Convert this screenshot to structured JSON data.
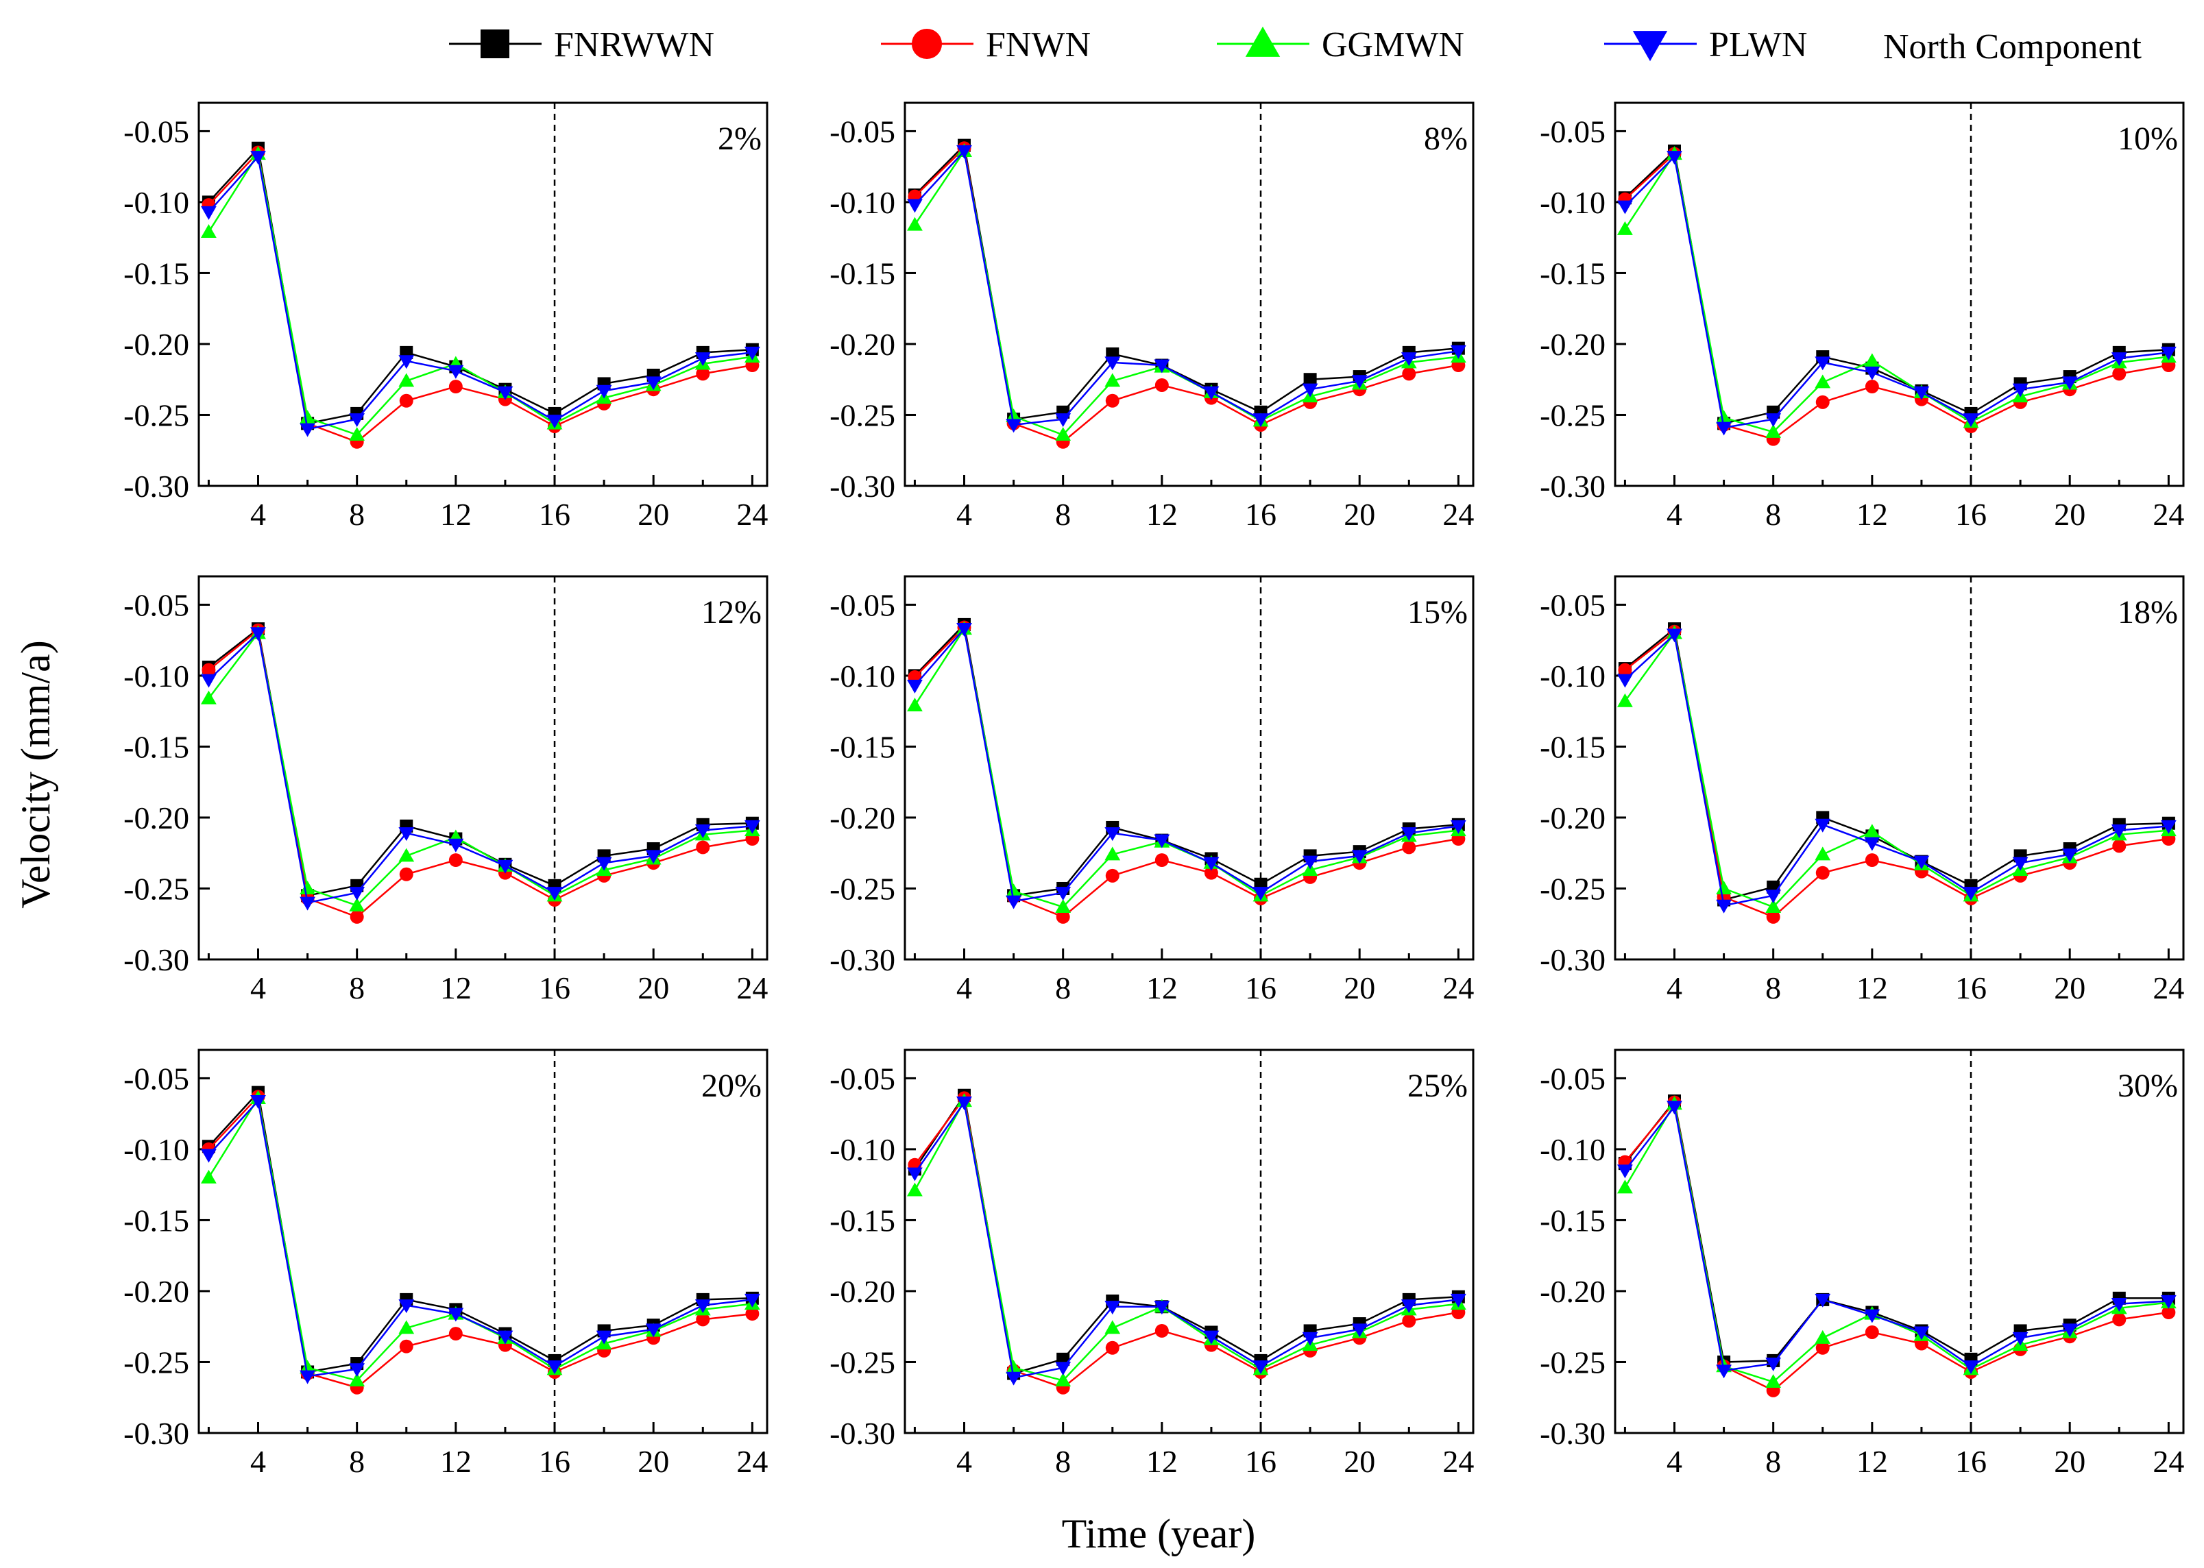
{
  "legend": {
    "entries": [
      {
        "label": "FNRWWN",
        "color": "#000000",
        "marker": "square"
      },
      {
        "label": "FNWN",
        "color": "#ff0000",
        "marker": "circle"
      },
      {
        "label": "GGMWN",
        "color": "#00ff00",
        "marker": "triangle-up"
      },
      {
        "label": "PLWN",
        "color": "#0000ff",
        "marker": "triangle-down"
      }
    ],
    "component_label": "North Component"
  },
  "axes": {
    "xlabel": "Time  (year)",
    "ylabel": "Velocity (mm/a)"
  },
  "chart_data": {
    "type": "line",
    "layout": "3x3 small multiples",
    "x": [
      2,
      4,
      6,
      8,
      10,
      12,
      14,
      16,
      18,
      20,
      22,
      24
    ],
    "xticks": [
      4,
      8,
      12,
      16,
      20,
      24
    ],
    "xlim": [
      1.6,
      24.6
    ],
    "ylim": [
      -0.3,
      -0.03
    ],
    "yticks": [
      -0.05,
      -0.1,
      -0.15,
      -0.2,
      -0.25,
      -0.3
    ],
    "ytick_labels": [
      "-0.05",
      "-0.10",
      "-0.15",
      "-0.20",
      "-0.25",
      "-0.30"
    ],
    "reference_line_x": 16,
    "series_names": [
      "FNRWWN",
      "FNWN",
      "GGMWN",
      "PLWN"
    ],
    "panels": [
      {
        "label": "2%",
        "series": [
          [
            -0.1,
            -0.062,
            -0.256,
            -0.249,
            -0.206,
            -0.216,
            -0.232,
            -0.249,
            -0.228,
            -0.222,
            -0.206,
            -0.204
          ],
          [
            -0.102,
            -0.065,
            -0.256,
            -0.269,
            -0.24,
            -0.23,
            -0.239,
            -0.258,
            -0.242,
            -0.232,
            -0.221,
            -0.215
          ],
          [
            -0.121,
            -0.066,
            -0.252,
            -0.264,
            -0.226,
            -0.214,
            -0.234,
            -0.256,
            -0.238,
            -0.229,
            -0.214,
            -0.209
          ],
          [
            -0.107,
            -0.068,
            -0.26,
            -0.253,
            -0.212,
            -0.219,
            -0.234,
            -0.254,
            -0.233,
            -0.227,
            -0.21,
            -0.206
          ]
        ]
      },
      {
        "label": "8%",
        "series": [
          [
            -0.095,
            -0.06,
            -0.253,
            -0.248,
            -0.207,
            -0.215,
            -0.232,
            -0.248,
            -0.225,
            -0.223,
            -0.206,
            -0.203
          ],
          [
            -0.096,
            -0.062,
            -0.256,
            -0.269,
            -0.24,
            -0.229,
            -0.238,
            -0.257,
            -0.241,
            -0.232,
            -0.221,
            -0.215
          ],
          [
            -0.116,
            -0.064,
            -0.251,
            -0.264,
            -0.226,
            -0.216,
            -0.234,
            -0.254,
            -0.237,
            -0.228,
            -0.213,
            -0.209
          ],
          [
            -0.102,
            -0.064,
            -0.257,
            -0.253,
            -0.213,
            -0.215,
            -0.234,
            -0.253,
            -0.232,
            -0.226,
            -0.21,
            -0.205
          ]
        ]
      },
      {
        "label": "10%",
        "series": [
          [
            -0.097,
            -0.064,
            -0.256,
            -0.248,
            -0.209,
            -0.217,
            -0.233,
            -0.249,
            -0.228,
            -0.223,
            -0.206,
            -0.204
          ],
          [
            -0.098,
            -0.066,
            -0.257,
            -0.267,
            -0.241,
            -0.23,
            -0.239,
            -0.258,
            -0.241,
            -0.232,
            -0.221,
            -0.215
          ],
          [
            -0.119,
            -0.066,
            -0.252,
            -0.262,
            -0.227,
            -0.212,
            -0.234,
            -0.255,
            -0.237,
            -0.228,
            -0.213,
            -0.209
          ],
          [
            -0.103,
            -0.068,
            -0.259,
            -0.253,
            -0.213,
            -0.22,
            -0.234,
            -0.253,
            -0.232,
            -0.227,
            -0.21,
            -0.206
          ]
        ]
      },
      {
        "label": "12%",
        "series": [
          [
            -0.094,
            -0.067,
            -0.255,
            -0.248,
            -0.206,
            -0.215,
            -0.233,
            -0.248,
            -0.227,
            -0.222,
            -0.205,
            -0.204
          ],
          [
            -0.096,
            -0.068,
            -0.257,
            -0.27,
            -0.24,
            -0.23,
            -0.239,
            -0.258,
            -0.241,
            -0.232,
            -0.221,
            -0.215
          ],
          [
            -0.116,
            -0.07,
            -0.25,
            -0.262,
            -0.227,
            -0.214,
            -0.234,
            -0.255,
            -0.237,
            -0.229,
            -0.212,
            -0.209
          ],
          [
            -0.103,
            -0.07,
            -0.26,
            -0.253,
            -0.211,
            -0.219,
            -0.234,
            -0.253,
            -0.232,
            -0.227,
            -0.209,
            -0.206
          ]
        ]
      },
      {
        "label": "15%",
        "series": [
          [
            -0.1,
            -0.064,
            -0.255,
            -0.25,
            -0.207,
            -0.216,
            -0.229,
            -0.247,
            -0.227,
            -0.224,
            -0.208,
            -0.205
          ],
          [
            -0.101,
            -0.066,
            -0.256,
            -0.27,
            -0.241,
            -0.23,
            -0.239,
            -0.257,
            -0.242,
            -0.232,
            -0.221,
            -0.215
          ],
          [
            -0.121,
            -0.067,
            -0.252,
            -0.263,
            -0.226,
            -0.217,
            -0.232,
            -0.255,
            -0.237,
            -0.228,
            -0.213,
            -0.209
          ],
          [
            -0.107,
            -0.067,
            -0.259,
            -0.253,
            -0.211,
            -0.216,
            -0.232,
            -0.253,
            -0.231,
            -0.227,
            -0.211,
            -0.206
          ]
        ]
      },
      {
        "label": "18%",
        "series": [
          [
            -0.095,
            -0.067,
            -0.258,
            -0.249,
            -0.2,
            -0.213,
            -0.231,
            -0.248,
            -0.227,
            -0.222,
            -0.205,
            -0.204
          ],
          [
            -0.096,
            -0.069,
            -0.256,
            -0.27,
            -0.239,
            -0.23,
            -0.238,
            -0.257,
            -0.241,
            -0.232,
            -0.22,
            -0.215
          ],
          [
            -0.118,
            -0.07,
            -0.25,
            -0.263,
            -0.226,
            -0.21,
            -0.233,
            -0.255,
            -0.237,
            -0.228,
            -0.212,
            -0.209
          ],
          [
            -0.103,
            -0.071,
            -0.262,
            -0.255,
            -0.205,
            -0.218,
            -0.231,
            -0.253,
            -0.232,
            -0.226,
            -0.209,
            -0.206
          ]
        ]
      },
      {
        "label": "20%",
        "series": [
          [
            -0.098,
            -0.06,
            -0.257,
            -0.251,
            -0.206,
            -0.213,
            -0.23,
            -0.249,
            -0.228,
            -0.224,
            -0.206,
            -0.205
          ],
          [
            -0.1,
            -0.063,
            -0.258,
            -0.268,
            -0.239,
            -0.23,
            -0.238,
            -0.257,
            -0.242,
            -0.233,
            -0.22,
            -0.216
          ],
          [
            -0.12,
            -0.064,
            -0.254,
            -0.263,
            -0.226,
            -0.216,
            -0.233,
            -0.255,
            -0.237,
            -0.228,
            -0.213,
            -0.209
          ],
          [
            -0.104,
            -0.066,
            -0.26,
            -0.255,
            -0.21,
            -0.216,
            -0.232,
            -0.253,
            -0.232,
            -0.227,
            -0.21,
            -0.206
          ]
        ]
      },
      {
        "label": "25%",
        "series": [
          [
            -0.114,
            -0.062,
            -0.258,
            -0.248,
            -0.207,
            -0.211,
            -0.229,
            -0.249,
            -0.228,
            -0.223,
            -0.206,
            -0.204
          ],
          [
            -0.111,
            -0.064,
            -0.256,
            -0.268,
            -0.24,
            -0.228,
            -0.238,
            -0.257,
            -0.242,
            -0.233,
            -0.221,
            -0.215
          ],
          [
            -0.129,
            -0.066,
            -0.254,
            -0.263,
            -0.226,
            -0.211,
            -0.234,
            -0.255,
            -0.238,
            -0.229,
            -0.213,
            -0.209
          ],
          [
            -0.117,
            -0.067,
            -0.261,
            -0.254,
            -0.211,
            -0.211,
            -0.232,
            -0.253,
            -0.233,
            -0.227,
            -0.21,
            -0.206
          ]
        ]
      },
      {
        "label": "30%",
        "series": [
          [
            -0.11,
            -0.066,
            -0.25,
            -0.249,
            -0.206,
            -0.215,
            -0.228,
            -0.248,
            -0.228,
            -0.224,
            -0.205,
            -0.205
          ],
          [
            -0.109,
            -0.067,
            -0.253,
            -0.27,
            -0.24,
            -0.229,
            -0.237,
            -0.257,
            -0.241,
            -0.232,
            -0.22,
            -0.215
          ],
          [
            -0.127,
            -0.068,
            -0.253,
            -0.264,
            -0.233,
            -0.216,
            -0.231,
            -0.255,
            -0.238,
            -0.229,
            -0.212,
            -0.208
          ],
          [
            -0.115,
            -0.07,
            -0.256,
            -0.251,
            -0.206,
            -0.217,
            -0.229,
            -0.253,
            -0.233,
            -0.227,
            -0.209,
            -0.207
          ]
        ]
      }
    ]
  }
}
